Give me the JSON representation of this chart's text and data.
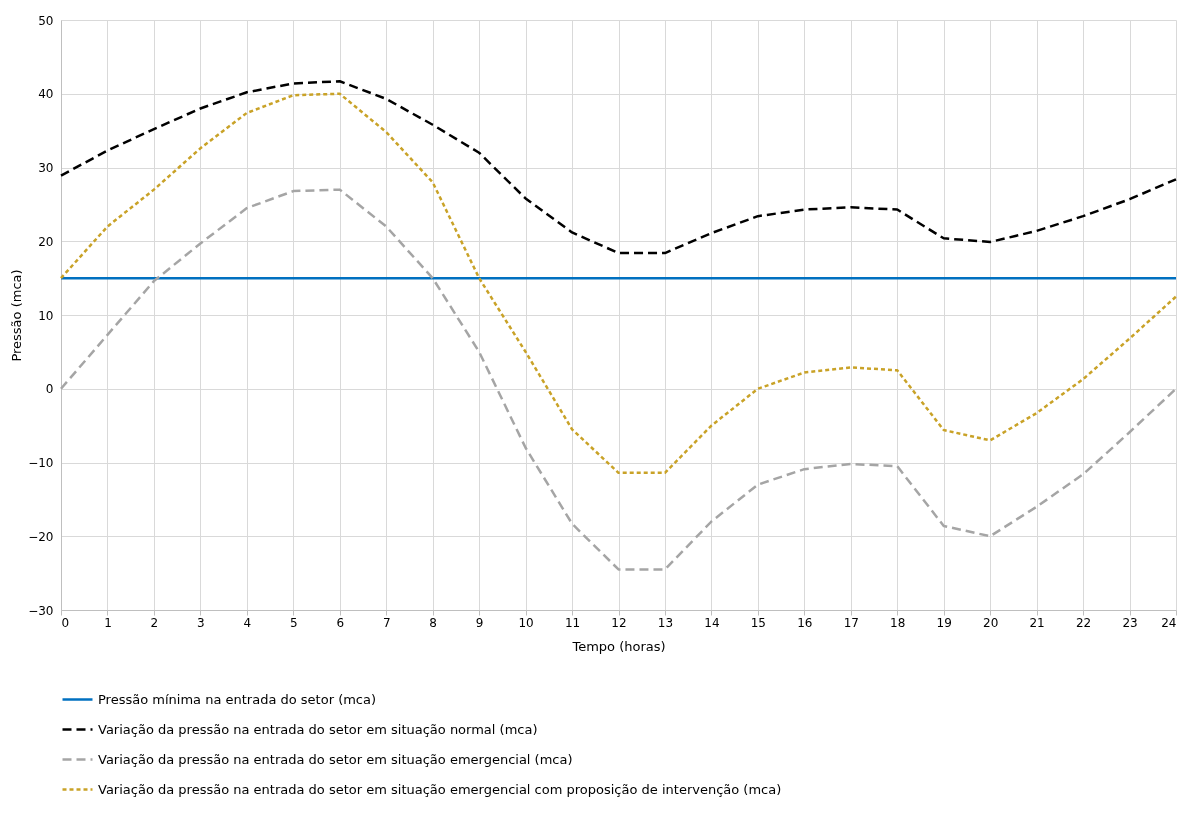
{
  "chart_data": {
    "type": "line",
    "xlabel": "Tempo (horas)",
    "ylabel": "Pressão (mca)",
    "x": [
      0,
      1,
      2,
      3,
      4,
      5,
      6,
      7,
      8,
      9,
      10,
      11,
      12,
      13,
      14,
      15,
      16,
      17,
      18,
      19,
      20,
      21,
      22,
      23,
      24
    ],
    "xlim": [
      0,
      24
    ],
    "xticks": [
      0,
      1,
      2,
      3,
      4,
      5,
      6,
      7,
      8,
      9,
      10,
      11,
      12,
      13,
      14,
      15,
      16,
      17,
      18,
      19,
      20,
      21,
      22,
      23,
      24
    ],
    "ylim": [
      -30,
      50
    ],
    "yticks": [
      -30,
      -20,
      -10,
      0,
      10,
      20,
      30,
      40,
      50
    ],
    "grid": true,
    "legend": "bottom",
    "marker": "none",
    "series": [
      {
        "name": "Pressão mínima na entrada do setor (mca)",
        "color": "#0070c0",
        "line_style": "solid",
        "values": [
          15,
          15,
          15,
          15,
          15,
          15,
          15,
          15,
          15,
          15,
          15,
          15,
          15,
          15,
          15,
          15,
          15,
          15,
          15,
          15,
          15,
          15,
          15,
          15,
          15
        ]
      },
      {
        "name": "Variação da pressão na entrada do setor em situação normal (mca)",
        "color": "#000000",
        "line_style": "dashed",
        "values": [
          28.9,
          32.3,
          35.2,
          38,
          40.2,
          41.4,
          41.7,
          39.3,
          35.8,
          32,
          25.8,
          21.2,
          18.4,
          18.4,
          21.1,
          23.4,
          24.3,
          24.6,
          24.3,
          20.4,
          19.9,
          21.4,
          23.4,
          25.7,
          28.4
        ]
      },
      {
        "name": "Variação da pressão na entrada do setor em situação emergencial (mca)",
        "color": "#a5a5a5",
        "line_style": "dashed",
        "values": [
          0,
          7.3,
          14.6,
          19.7,
          24.5,
          26.8,
          27,
          22,
          15,
          5,
          -8,
          -18.3,
          -24.5,
          -24.5,
          -18,
          -13,
          -10.9,
          -10.2,
          -10.5,
          -18.6,
          -20,
          -16,
          -11.6,
          -5.9,
          0
        ]
      },
      {
        "name": "Variação da pressão na entrada do setor em situação emergencial com proposição de intervenção (mca)",
        "color": "#c9a227",
        "line_style": "dotted",
        "values": [
          15,
          22,
          27,
          32.6,
          37.4,
          39.8,
          40,
          34.8,
          28,
          15,
          5,
          -5.5,
          -11.4,
          -11.4,
          -5,
          0,
          2.2,
          2.9,
          2.5,
          -5.6,
          -7,
          -3.3,
          1.3,
          6.8,
          12.5
        ]
      }
    ]
  }
}
